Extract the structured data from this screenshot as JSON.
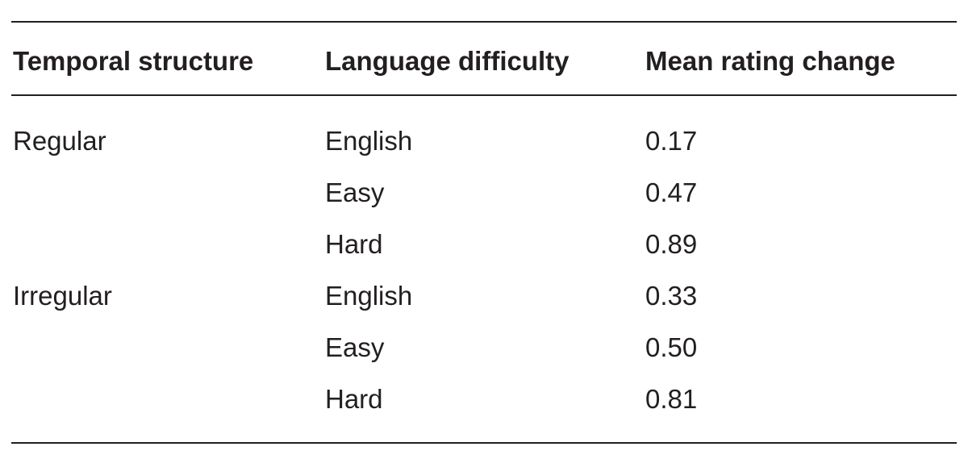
{
  "table": {
    "headers": [
      "Temporal structure",
      "Language difficulty",
      "Mean rating change"
    ],
    "rows": [
      {
        "structure": "Regular",
        "difficulty": "English",
        "mean": "0.17"
      },
      {
        "structure": "",
        "difficulty": "Easy",
        "mean": "0.47"
      },
      {
        "structure": "",
        "difficulty": "Hard",
        "mean": "0.89"
      },
      {
        "structure": "Irregular",
        "difficulty": "English",
        "mean": "0.33"
      },
      {
        "structure": "",
        "difficulty": "Easy",
        "mean": "0.50"
      },
      {
        "structure": "",
        "difficulty": "Hard",
        "mean": "0.81"
      }
    ]
  }
}
